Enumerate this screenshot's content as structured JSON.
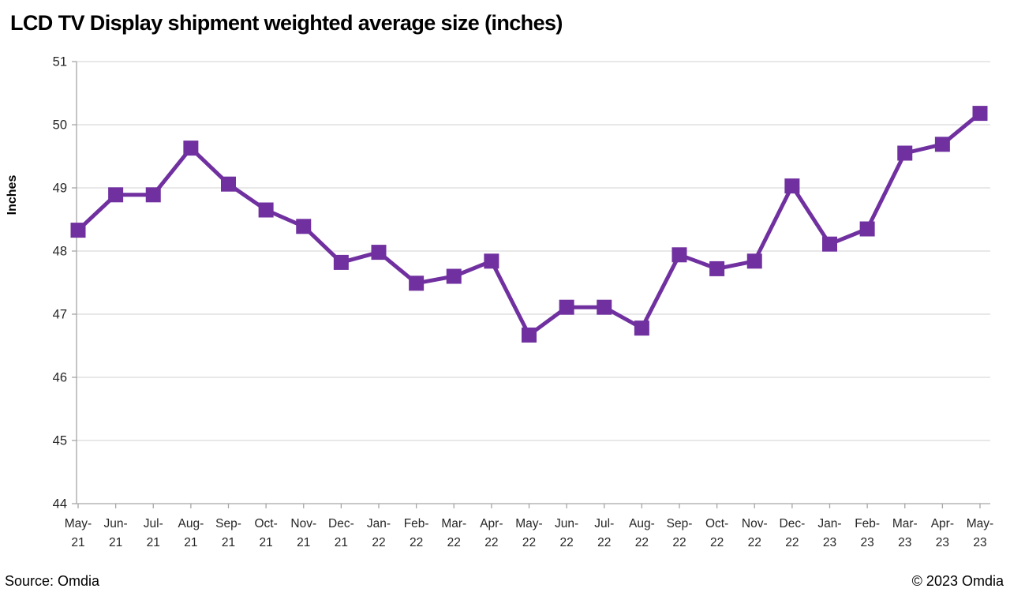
{
  "footer": {
    "source": "Source: Omdia",
    "copyright": "© 2023 Omdia"
  },
  "chart_data": {
    "type": "line",
    "title": "LCD TV Display shipment weighted average size (inches)",
    "xlabel": "",
    "ylabel": "Inches",
    "ylim": [
      44,
      51
    ],
    "ytick_step": 1,
    "grid": true,
    "legend": "none",
    "line_color": "#7030A0",
    "marker": "square",
    "grid_color": "#D9D9D9",
    "axis_color": "#A6A6A6",
    "tick_label_color": "#262626",
    "categories": [
      "May-21",
      "Jun-21",
      "Jul-21",
      "Aug-21",
      "Sep-21",
      "Oct-21",
      "Nov-21",
      "Dec-21",
      "Jan-22",
      "Feb-22",
      "Mar-22",
      "Apr-22",
      "May-22",
      "Jun-22",
      "Jul-22",
      "Aug-22",
      "Sep-22",
      "Oct-22",
      "Nov-22",
      "Dec-22",
      "Jan-23",
      "Feb-23",
      "Mar-23",
      "Apr-23",
      "May-23"
    ],
    "values": [
      48.33,
      48.89,
      48.89,
      49.63,
      49.06,
      48.65,
      48.39,
      47.82,
      47.98,
      47.49,
      47.6,
      47.84,
      46.67,
      47.11,
      47.11,
      46.78,
      47.94,
      47.72,
      47.84,
      49.03,
      48.11,
      48.35,
      49.55,
      49.69,
      50.18
    ]
  }
}
